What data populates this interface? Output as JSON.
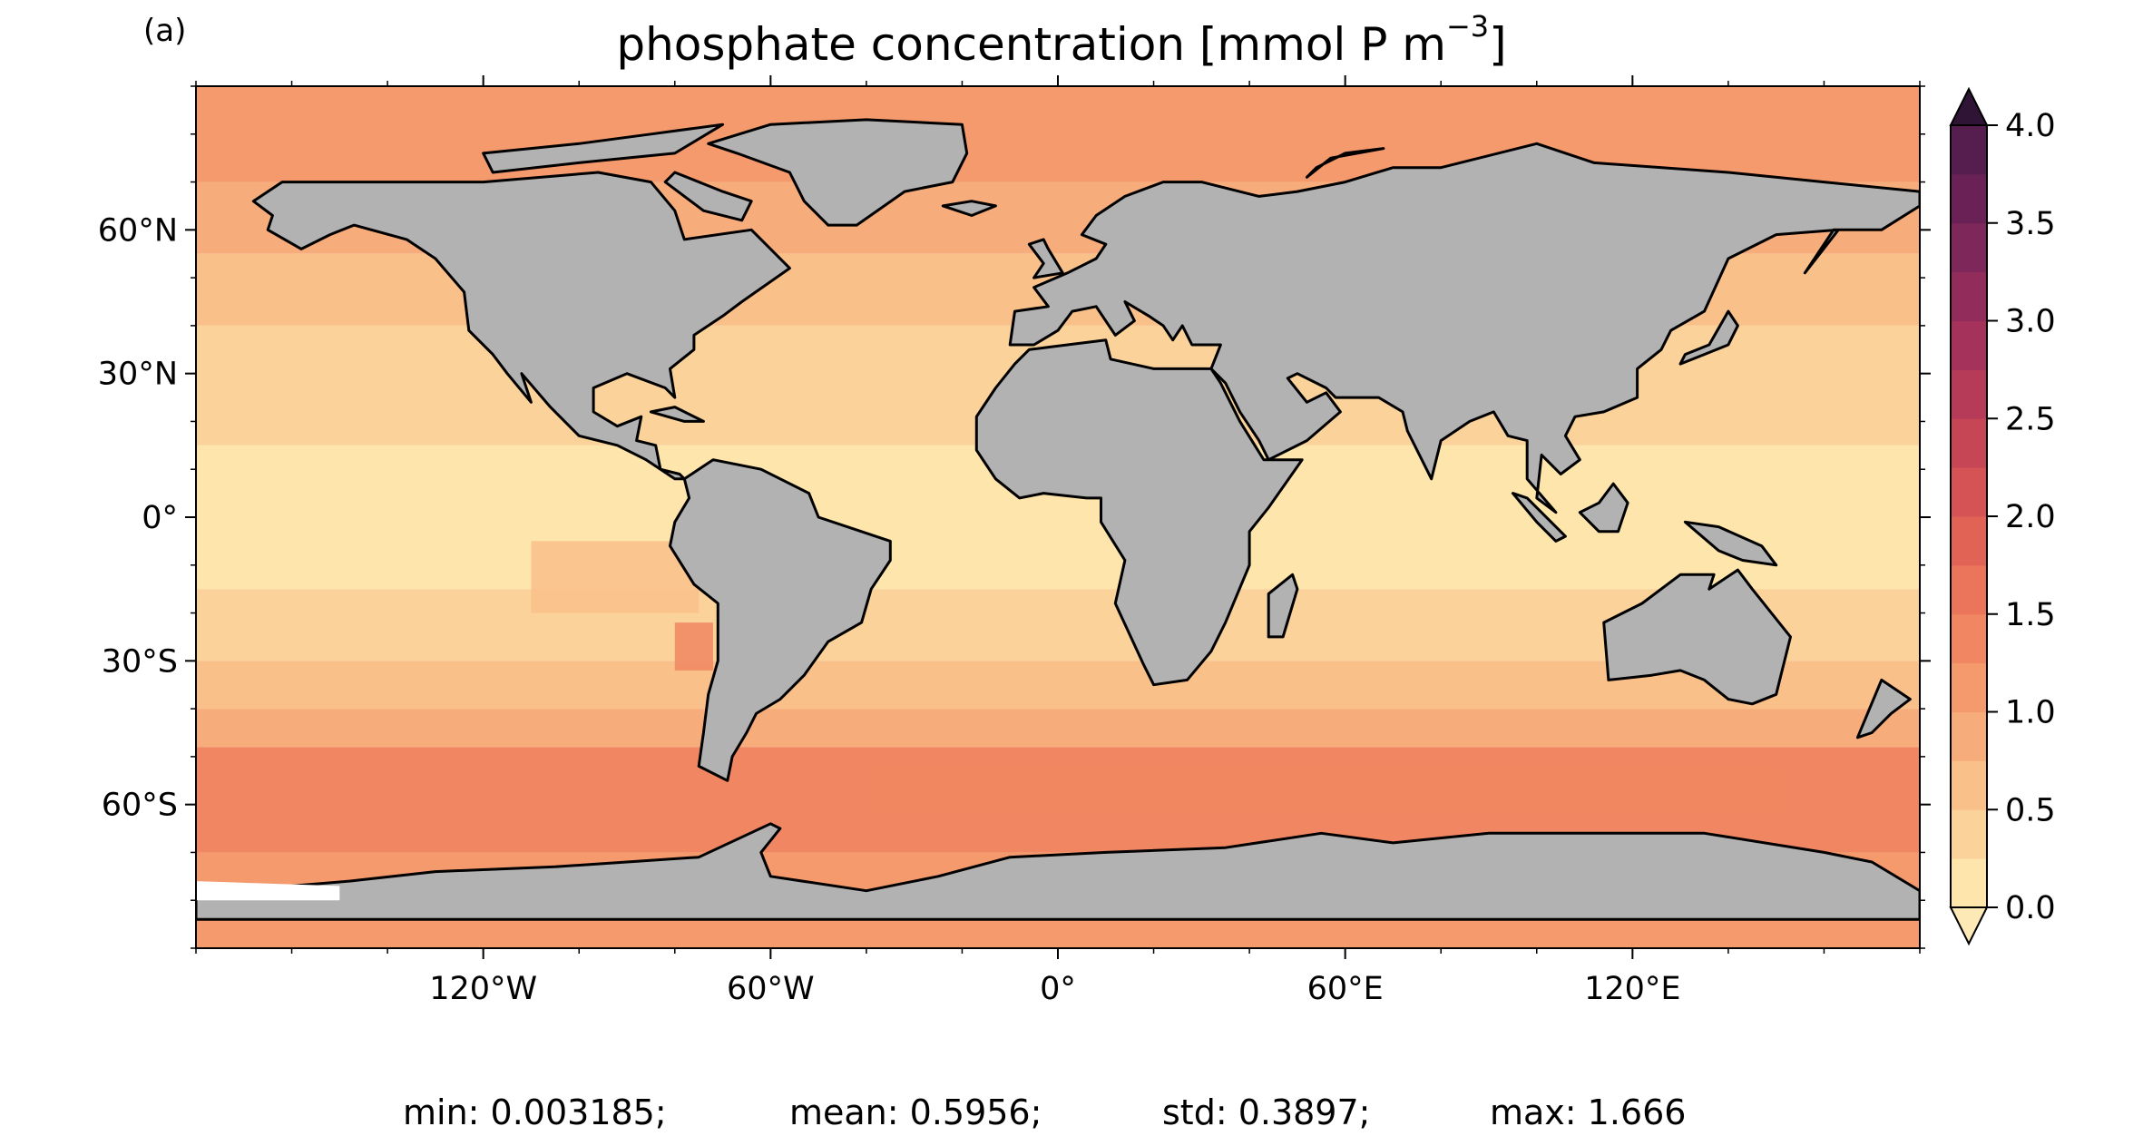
{
  "panel_label": "(a)",
  "title": {
    "text": "phosphate concentration [mmol P m",
    "superscript": "−3",
    "suffix": "]"
  },
  "map": {
    "projection": "PlateCarree",
    "lon_range": [
      -180,
      180
    ],
    "lat_range": [
      -90,
      90
    ],
    "land_color": "#b2b2b2",
    "coastline_color": "#000000",
    "missing_ocean_color": "#ffffff",
    "x_ticks": [
      {
        "lon": -120,
        "label": "120°W"
      },
      {
        "lon": -60,
        "label": "60°W"
      },
      {
        "lon": 0,
        "label": "0°"
      },
      {
        "lon": 60,
        "label": "60°E"
      },
      {
        "lon": 120,
        "label": "120°E"
      }
    ],
    "y_ticks": [
      {
        "lat": 60,
        "label": "60°N"
      },
      {
        "lat": 30,
        "label": "30°N"
      },
      {
        "lat": 0,
        "label": "0°"
      },
      {
        "lat": -30,
        "label": "30°S"
      },
      {
        "lat": -60,
        "label": "60°S"
      }
    ],
    "field_bands": [
      {
        "lat_from": 90,
        "lat_to": 70,
        "level": 1.05
      },
      {
        "lat_from": 70,
        "lat_to": 55,
        "level": 0.85
      },
      {
        "lat_from": 55,
        "lat_to": 40,
        "level": 0.6
      },
      {
        "lat_from": 40,
        "lat_to": 15,
        "level": 0.3
      },
      {
        "lat_from": 15,
        "lat_to": -15,
        "level": 0.2
      },
      {
        "lat_from": -15,
        "lat_to": -30,
        "level": 0.3
      },
      {
        "lat_from": -30,
        "lat_to": -40,
        "level": 0.5
      },
      {
        "lat_from": -40,
        "lat_to": -48,
        "level": 0.9
      },
      {
        "lat_from": -48,
        "lat_to": -70,
        "level": 1.3
      },
      {
        "lat_from": -70,
        "lat_to": -90,
        "level": 1.0
      }
    ]
  },
  "colorbar": {
    "ticks": [
      "0.0",
      "0.5",
      "1.0",
      "1.5",
      "2.0",
      "2.5",
      "3.0",
      "3.5",
      "4.0"
    ],
    "vmin": 0.0,
    "vmax": 4.0,
    "step": 0.25,
    "extend": "both",
    "colormap": "matter",
    "colors": [
      "#fde5ab",
      "#fbd29a",
      "#f9c08a",
      "#f7ad7b",
      "#f49a6d",
      "#f08762",
      "#ea755a",
      "#e16356",
      "#d55355",
      "#c74656",
      "#b63b58",
      "#a4325a",
      "#912c5b",
      "#7d275a",
      "#6a2256",
      "#561e4f",
      "#441a44",
      "#33163a"
    ],
    "under_color": "#fde9b5",
    "over_color": "#2f1436"
  },
  "stats": {
    "min": "min: 0.003185;",
    "mean": "mean: 0.5956;",
    "std": "std: 0.3897;",
    "max": "max: 1.666"
  }
}
